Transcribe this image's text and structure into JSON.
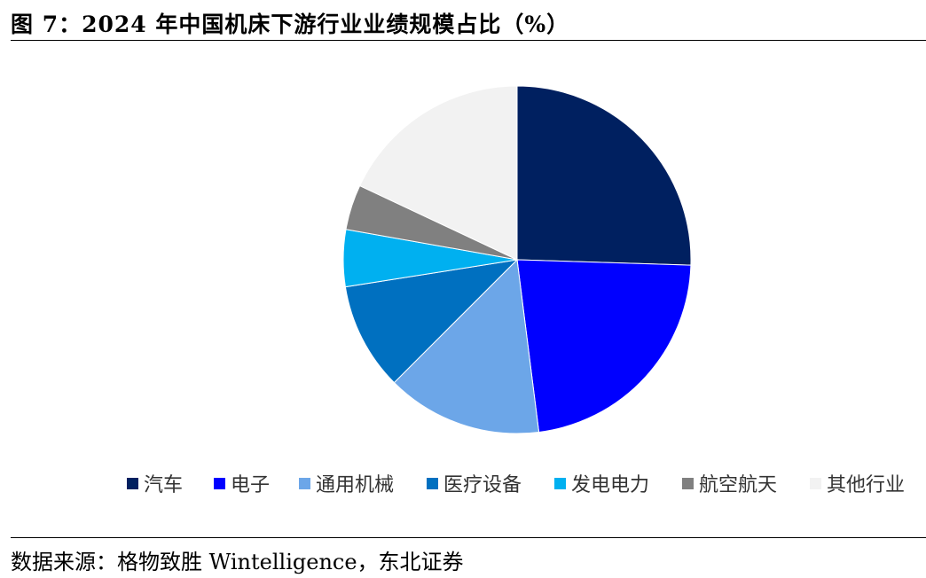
{
  "title": "图 7：2024 年中国机床下游行业业绩规模占比（%）",
  "source": "数据来源：格物致胜 Wintelligence，东北证券",
  "chart_data": {
    "type": "pie",
    "title": "图 7：2024 年中国机床下游行业业绩规模占比（%）",
    "start_angle_deg": 0,
    "direction": "clockwise",
    "legend_position": "bottom",
    "slices": [
      {
        "label": "汽车",
        "value": 25.5,
        "color": "#002060"
      },
      {
        "label": "电子",
        "value": 22.5,
        "color": "#0000FF"
      },
      {
        "label": "通用机械",
        "value": 14.5,
        "color": "#6CA6E8"
      },
      {
        "label": "医疗设备",
        "value": 10.0,
        "color": "#0070C0"
      },
      {
        "label": "发电电力",
        "value": 5.3,
        "color": "#00B0F0"
      },
      {
        "label": "航空航天",
        "value": 4.2,
        "color": "#808080"
      },
      {
        "label": "其他行业",
        "value": 18.0,
        "color": "#F2F2F2"
      }
    ]
  }
}
